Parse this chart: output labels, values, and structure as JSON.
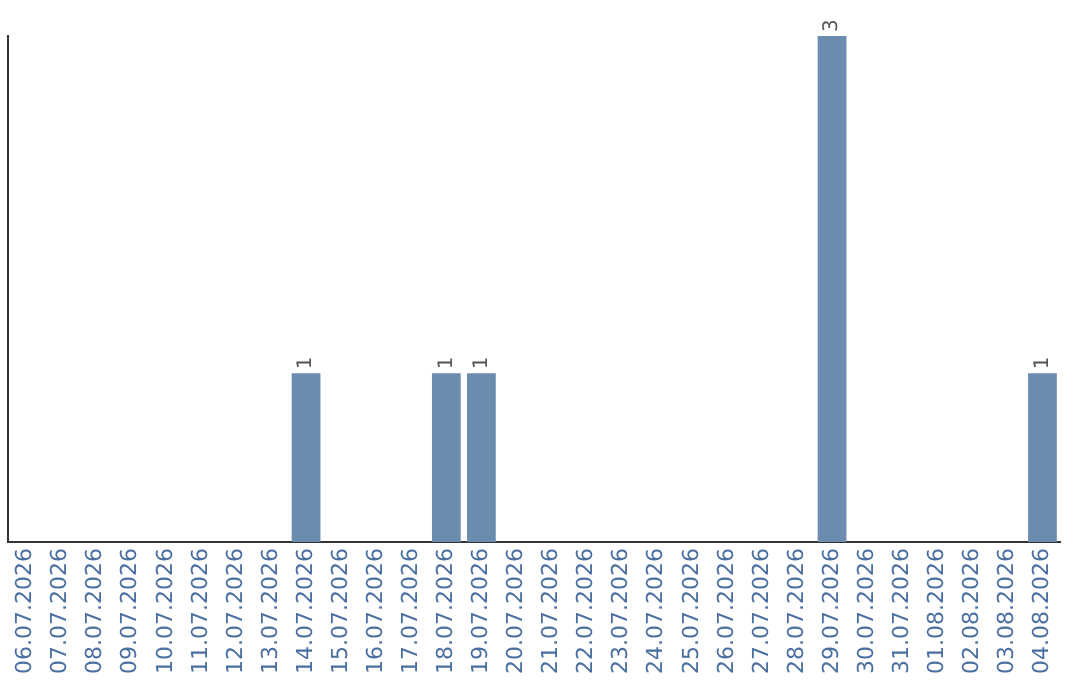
{
  "chart_data": {
    "type": "bar",
    "categories": [
      "06.07.2026",
      "07.07.2026",
      "08.07.2026",
      "09.07.2026",
      "10.07.2026",
      "11.07.2026",
      "12.07.2026",
      "13.07.2026",
      "14.07.2026",
      "15.07.2026",
      "16.07.2026",
      "17.07.2026",
      "18.07.2026",
      "19.07.2026",
      "20.07.2026",
      "21.07.2026",
      "22.07.2026",
      "23.07.2026",
      "24.07.2026",
      "25.07.2026",
      "26.07.2026",
      "27.07.2026",
      "28.07.2026",
      "29.07.2026",
      "30.07.2026",
      "31.07.2026",
      "01.08.2026",
      "02.08.2026",
      "03.08.2026",
      "04.08.2026"
    ],
    "values": [
      0,
      0,
      0,
      0,
      0,
      0,
      0,
      0,
      1,
      0,
      0,
      0,
      1,
      1,
      0,
      0,
      0,
      0,
      0,
      0,
      0,
      0,
      0,
      3,
      0,
      0,
      0,
      0,
      0,
      1
    ],
    "value_labels": [
      null,
      null,
      null,
      null,
      null,
      null,
      null,
      null,
      "1",
      null,
      null,
      null,
      "1",
      "1",
      null,
      null,
      null,
      null,
      null,
      null,
      null,
      null,
      null,
      "3",
      null,
      null,
      null,
      null,
      null,
      "1"
    ],
    "color": "#6b8cae",
    "grid": false,
    "legend": false,
    "tick_labels": "x"
  }
}
